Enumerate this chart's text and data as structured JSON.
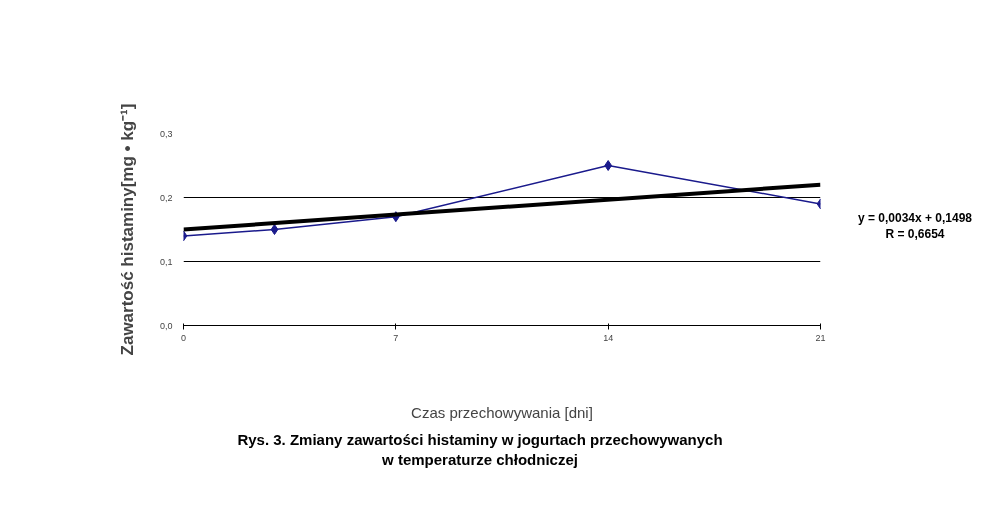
{
  "chart_data": {
    "type": "line",
    "title": "Rys. 3. Zmiany zawartości histaminy w jogurtach przechowywanych\nw temperaturze chłodniczej",
    "xlabel": "Czas przechowywania [dni]",
    "ylabel": "Zawartość histaminy[mg • kg⁻¹]",
    "x": [
      0,
      3,
      7,
      14,
      21
    ],
    "series": [
      {
        "color": "#1a1a8c",
        "values": [
          0.14,
          0.15,
          0.17,
          0.25,
          0.19
        ],
        "marker": "diamond"
      },
      {
        "color": "#000000",
        "x": [
          0,
          21
        ],
        "values": [
          0.15,
          0.22
        ],
        "marker": "none"
      }
    ],
    "annotations": [
      "y = 0,0034x + 0,1498",
      "R = 0,6654"
    ],
    "xlim": [
      0,
      21
    ],
    "xticks": [
      0,
      7,
      14,
      21
    ],
    "ylim": [
      0,
      0.3
    ],
    "yticks": [
      {
        "value": 0,
        "label": "0,0"
      },
      {
        "value": 0.1,
        "label": "0,1"
      },
      {
        "value": 0.2,
        "label": "0,2"
      },
      {
        "value": 0.3,
        "label": "0,3"
      }
    ],
    "grid": "y"
  }
}
